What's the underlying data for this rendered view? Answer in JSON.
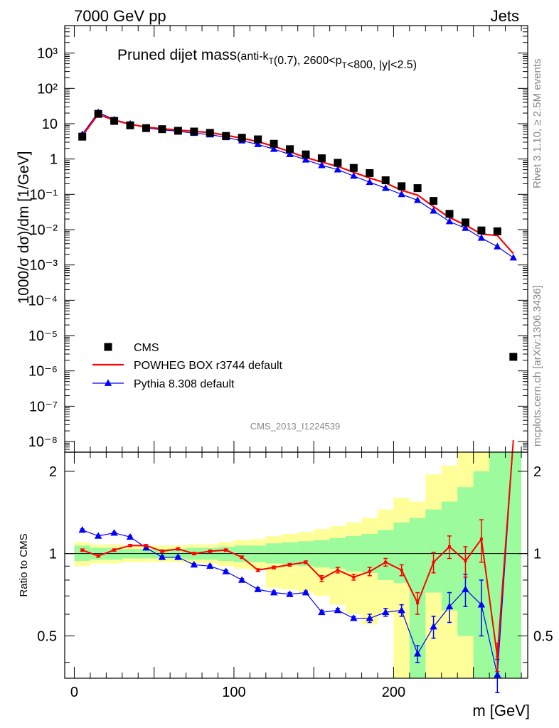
{
  "header": {
    "energy_label": "7000 GeV pp",
    "category_label": "Jets"
  },
  "side": {
    "rivet_label": "Rivet 3.1.10, ≥ 2.5M events",
    "mcplots_label": "mcplots.cern.ch [arXiv:1306.3436]"
  },
  "chart_data": [
    {
      "type": "line",
      "title_main": "Pruned dijet mass",
      "title_sub": "(anti-k_T(0.7), 2600<p_T<800, |y|<2.5)",
      "ylabel": "1000/σ dσ)/dm [1/GeV]",
      "y_scale": "log",
      "xlim": [
        -6,
        284
      ],
      "ylim": [
        5e-09,
        6000
      ],
      "analysis_label": "CMS_2013_I1224539",
      "legend_position": "middle-left",
      "x": [
        5,
        15,
        25,
        35,
        45,
        55,
        65,
        75,
        85,
        95,
        105,
        115,
        125,
        135,
        145,
        155,
        165,
        175,
        185,
        195,
        205,
        215,
        225,
        235,
        245,
        255,
        265,
        275
      ],
      "series": [
        {
          "name": "CMS",
          "color": "#000000",
          "marker": "square",
          "values": [
            4.3,
            19,
            12,
            9,
            7.5,
            7.0,
            6.3,
            6.0,
            5.5,
            4.5,
            4.0,
            3.6,
            2.7,
            1.9,
            1.35,
            1.05,
            0.78,
            0.56,
            0.4,
            0.25,
            0.17,
            0.15,
            0.065,
            0.028,
            0.016,
            0.0095,
            0.009,
            2.5e-06
          ]
        },
        {
          "name": "POWHEG BOX r3744 default",
          "color": "#ff0000",
          "marker": "none",
          "values": [
            4.5,
            18.5,
            12.5,
            9.7,
            8.0,
            7.2,
            6.6,
            6.1,
            5.6,
            4.7,
            3.9,
            3.1,
            2.3,
            1.6,
            1.1,
            0.82,
            0.62,
            0.42,
            0.29,
            0.21,
            0.13,
            0.095,
            0.045,
            0.022,
            0.0135,
            0.0075,
            0.0068,
            0.0021
          ]
        },
        {
          "name": "Pythia 8.308 default",
          "color": "#0000ff",
          "marker": "triangle",
          "values": [
            5.0,
            21,
            13,
            9.9,
            7.6,
            6.7,
            6.1,
            5.4,
            4.9,
            4.1,
            3.3,
            2.6,
            1.9,
            1.35,
            0.95,
            0.66,
            0.5,
            0.33,
            0.22,
            0.15,
            0.1,
            0.068,
            0.034,
            0.017,
            0.011,
            0.0058,
            0.0033,
            0.0016
          ]
        }
      ],
      "x_ticks": [
        0,
        100,
        200
      ],
      "y_ticks": [
        "10^-8",
        "10^-7",
        "10^-6",
        "10^-5",
        "10^-4",
        "10^-3",
        "10^-2",
        "10^-1",
        "1",
        "10",
        "10^2",
        "10^3"
      ]
    },
    {
      "type": "line",
      "ylabel": "Ratio to CMS",
      "xlabel": "m [GeV]",
      "xlim": [
        -6,
        284
      ],
      "ylim": [
        0.35,
        2.35
      ],
      "y_scale": "log",
      "y_ticks": [
        0.5,
        1,
        2
      ],
      "x_ticks": [
        0,
        100,
        200
      ],
      "x": [
        5,
        15,
        25,
        35,
        45,
        55,
        65,
        75,
        85,
        95,
        105,
        115,
        125,
        135,
        145,
        155,
        165,
        175,
        185,
        195,
        205,
        215,
        225,
        235,
        245,
        255,
        265,
        275
      ],
      "band_inner": [
        [
          0.94,
          1.07
        ],
        [
          0.95,
          1.05
        ],
        [
          0.95,
          1.05
        ],
        [
          0.96,
          1.04
        ],
        [
          0.96,
          1.04
        ],
        [
          0.96,
          1.04
        ],
        [
          0.96,
          1.04
        ],
        [
          0.95,
          1.05
        ],
        [
          0.95,
          1.05
        ],
        [
          0.94,
          1.06
        ],
        [
          0.93,
          1.07
        ],
        [
          0.93,
          1.07
        ],
        [
          0.92,
          1.09
        ],
        [
          0.91,
          1.1
        ],
        [
          0.9,
          1.11
        ],
        [
          0.89,
          1.12
        ],
        [
          0.88,
          1.14
        ],
        [
          0.86,
          1.16
        ],
        [
          0.85,
          1.18
        ],
        [
          0.8,
          1.22
        ],
        [
          0.78,
          1.3
        ],
        [
          0.35,
          1.35
        ],
        [
          0.72,
          1.45
        ],
        [
          0.62,
          1.55
        ],
        [
          0.5,
          1.75
        ],
        [
          0.35,
          2.0
        ],
        [
          0.35,
          2.35
        ],
        [
          0.35,
          2.35
        ]
      ],
      "band_outer": [
        [
          0.9,
          1.1
        ],
        [
          0.92,
          1.08
        ],
        [
          0.92,
          1.08
        ],
        [
          0.93,
          1.07
        ],
        [
          0.93,
          1.07
        ],
        [
          0.93,
          1.07
        ],
        [
          0.93,
          1.07
        ],
        [
          0.92,
          1.08
        ],
        [
          0.92,
          1.08
        ],
        [
          0.9,
          1.1
        ],
        [
          0.88,
          1.12
        ],
        [
          0.87,
          1.13
        ],
        [
          0.75,
          1.16
        ],
        [
          0.74,
          1.18
        ],
        [
          0.72,
          1.2
        ],
        [
          0.7,
          1.23
        ],
        [
          0.65,
          1.26
        ],
        [
          0.6,
          1.3
        ],
        [
          0.55,
          1.35
        ],
        [
          0.6,
          1.45
        ],
        [
          0.35,
          1.6
        ],
        [
          0.35,
          1.55
        ],
        [
          0.35,
          1.95
        ],
        [
          0.35,
          2.1
        ],
        [
          0.35,
          2.35
        ],
        [
          0.35,
          2.35
        ],
        [
          0.35,
          2.35
        ],
        [
          0.35,
          2.35
        ]
      ],
      "series": [
        {
          "name": "POWHEG BOX r3744 default",
          "color": "#ff0000",
          "values": [
            1.03,
            0.98,
            1.03,
            1.07,
            1.07,
            1.02,
            1.04,
            1.0,
            1.02,
            1.03,
            0.97,
            0.87,
            0.89,
            0.91,
            0.93,
            0.81,
            0.87,
            0.82,
            0.86,
            0.93,
            0.87,
            0.66,
            0.93,
            1.06,
            0.94,
            1.13,
            0.42,
            2.6
          ],
          "err": [
            0.01,
            0.01,
            0.01,
            0.01,
            0.01,
            0.01,
            0.01,
            0.01,
            0.01,
            0.01,
            0.01,
            0.01,
            0.01,
            0.01,
            0.01,
            0.02,
            0.02,
            0.02,
            0.03,
            0.03,
            0.04,
            0.06,
            0.08,
            0.1,
            0.12,
            0.2,
            0.05,
            0.2
          ]
        },
        {
          "name": "Pythia 8.308 default",
          "color": "#0000ff",
          "values": [
            1.22,
            1.16,
            1.19,
            1.15,
            1.05,
            0.97,
            0.97,
            0.91,
            0.9,
            0.86,
            0.8,
            0.74,
            0.72,
            0.71,
            0.72,
            0.61,
            0.62,
            0.58,
            0.58,
            0.61,
            0.62,
            0.43,
            0.54,
            0.64,
            0.74,
            0.65,
            0.36,
            2.6
          ],
          "err": [
            0.01,
            0.01,
            0.01,
            0.01,
            0.01,
            0.01,
            0.01,
            0.01,
            0.01,
            0.01,
            0.01,
            0.01,
            0.01,
            0.01,
            0.01,
            0.01,
            0.01,
            0.01,
            0.02,
            0.02,
            0.03,
            0.03,
            0.05,
            0.08,
            0.1,
            0.15,
            0.05,
            0.2
          ]
        }
      ]
    }
  ],
  "colors": {
    "band_inner": "#9cfb9c",
    "band_outer": "#ffff99",
    "powheg": "#ff0000",
    "pythia": "#0000ff",
    "data": "#000000"
  }
}
